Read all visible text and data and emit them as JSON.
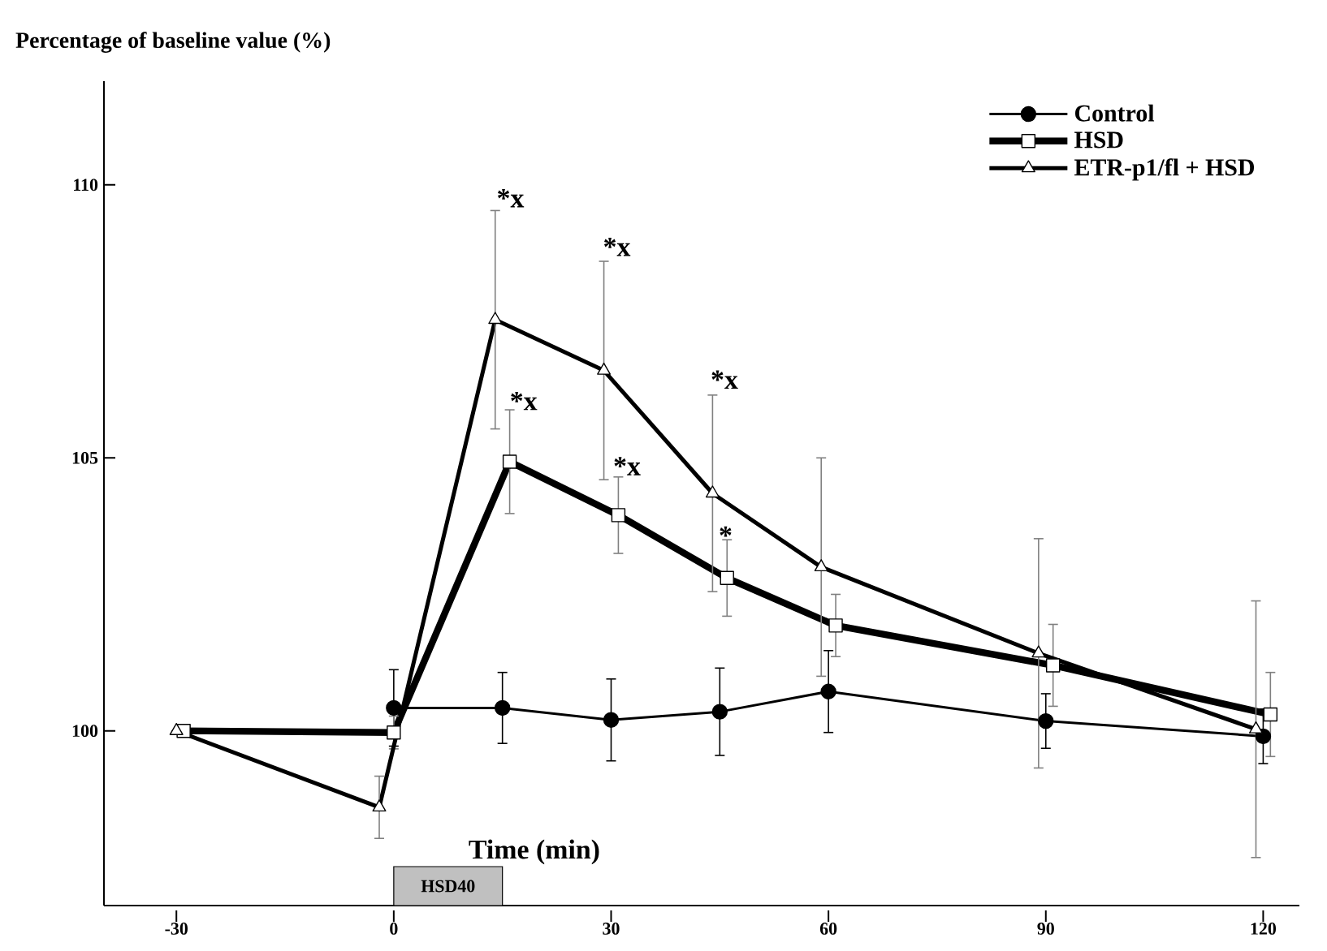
{
  "chart_data": {
    "type": "line",
    "ylabel": "Percentage of baseline value (%)",
    "xlabel": "Time (min)",
    "xlim": [
      -40,
      125
    ],
    "ylim": [
      96.8,
      111.9
    ],
    "xticks": [
      -30,
      0,
      30,
      60,
      90,
      120
    ],
    "yticks": [
      100,
      105,
      110
    ],
    "legend": "top right",
    "grid": false,
    "line_style": "solid",
    "series": [
      {
        "name": "Control",
        "color": "#000000",
        "marker": "circle",
        "x": [
          0,
          15,
          30,
          45,
          60,
          90,
          120
        ],
        "values": [
          100.42,
          100.42,
          100.2,
          100.35,
          100.72,
          100.18,
          99.9
        ],
        "errors": [
          0.7,
          0.65,
          0.75,
          0.8,
          0.75,
          0.5,
          0.5
        ]
      },
      {
        "name": "HSD",
        "color": "#000000",
        "marker": "square",
        "x": [
          -29,
          0,
          16,
          31,
          46,
          61,
          91,
          121
        ],
        "values": [
          100,
          99.97,
          104.93,
          103.95,
          102.8,
          101.93,
          101.2,
          100.3
        ],
        "errors": [
          null,
          0.3,
          0.95,
          0.7,
          0.7,
          0.57,
          0.75,
          0.77
        ]
      },
      {
        "name": "ETR-p1/fl + HSD",
        "color": "#000000",
        "marker": "triangle",
        "x": [
          -30,
          -2,
          14,
          29,
          44,
          59,
          89,
          119
        ],
        "values": [
          100,
          98.6,
          107.53,
          106.6,
          104.35,
          103.0,
          101.42,
          100.03
        ],
        "errors": [
          null,
          0.57,
          2.0,
          2.0,
          1.8,
          2.0,
          2.1,
          2.35
        ]
      }
    ],
    "annotations": [
      "*x",
      "*x",
      "*x",
      "*x",
      "*x",
      "*"
    ],
    "bands": [
      {
        "axis": "x",
        "from": 0,
        "to": 15,
        "label": "HSD40",
        "color": "#c0c0c0"
      }
    ]
  }
}
